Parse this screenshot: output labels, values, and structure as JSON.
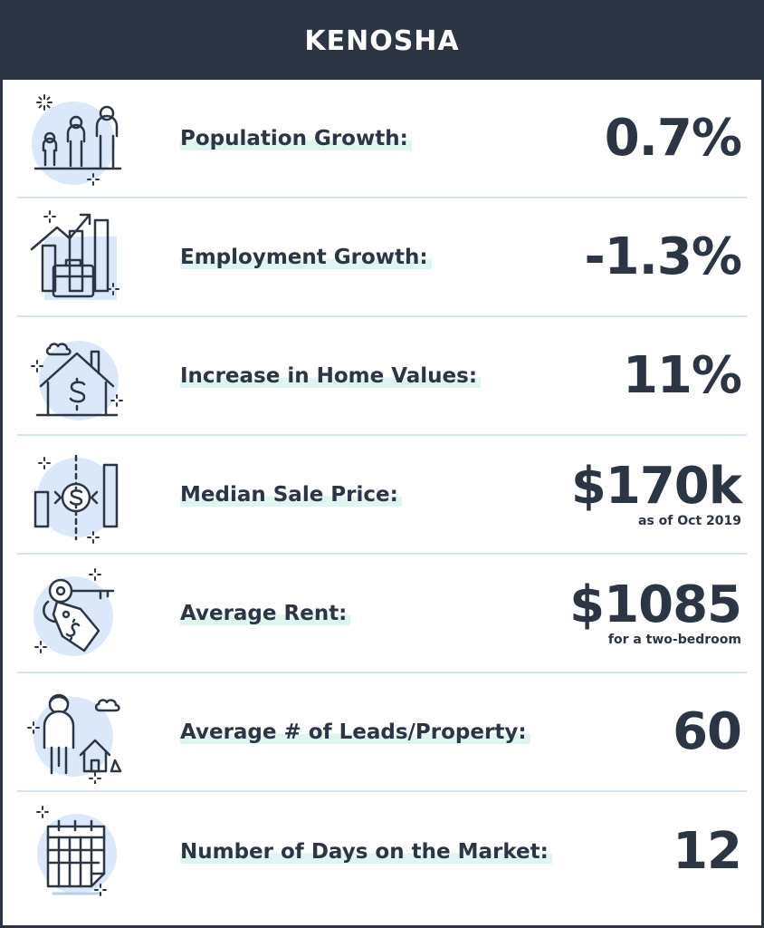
{
  "header": {
    "title": "KENOSHA"
  },
  "colors": {
    "navy": "#2b3544",
    "light_blue": "#dbe8f9",
    "icon_stroke": "#2b3544",
    "highlight": "#dff6f0",
    "divider": "#d4e3f3"
  },
  "stats": [
    {
      "icon": "family-icon",
      "label": "Population Growth:",
      "value": "0.7%",
      "note": ""
    },
    {
      "icon": "employment-chart-icon",
      "label": "Employment Growth:",
      "value": "-1.3%",
      "note": ""
    },
    {
      "icon": "house-dollar-icon",
      "label": "Increase in Home Values:",
      "value": "11%",
      "note": ""
    },
    {
      "icon": "sale-price-icon",
      "label": "Median Sale Price:",
      "value": "$170k",
      "note": "as  of Oct 2019"
    },
    {
      "icon": "key-tag-icon",
      "label": "Average Rent:",
      "value": "$1085",
      "note": "for a two-bedroom"
    },
    {
      "icon": "person-house-icon",
      "label": "Average # of Leads/Property:",
      "value": "60",
      "note": ""
    },
    {
      "icon": "calendar-icon",
      "label": "Number of Days on the Market:",
      "value": "12",
      "note": ""
    }
  ]
}
